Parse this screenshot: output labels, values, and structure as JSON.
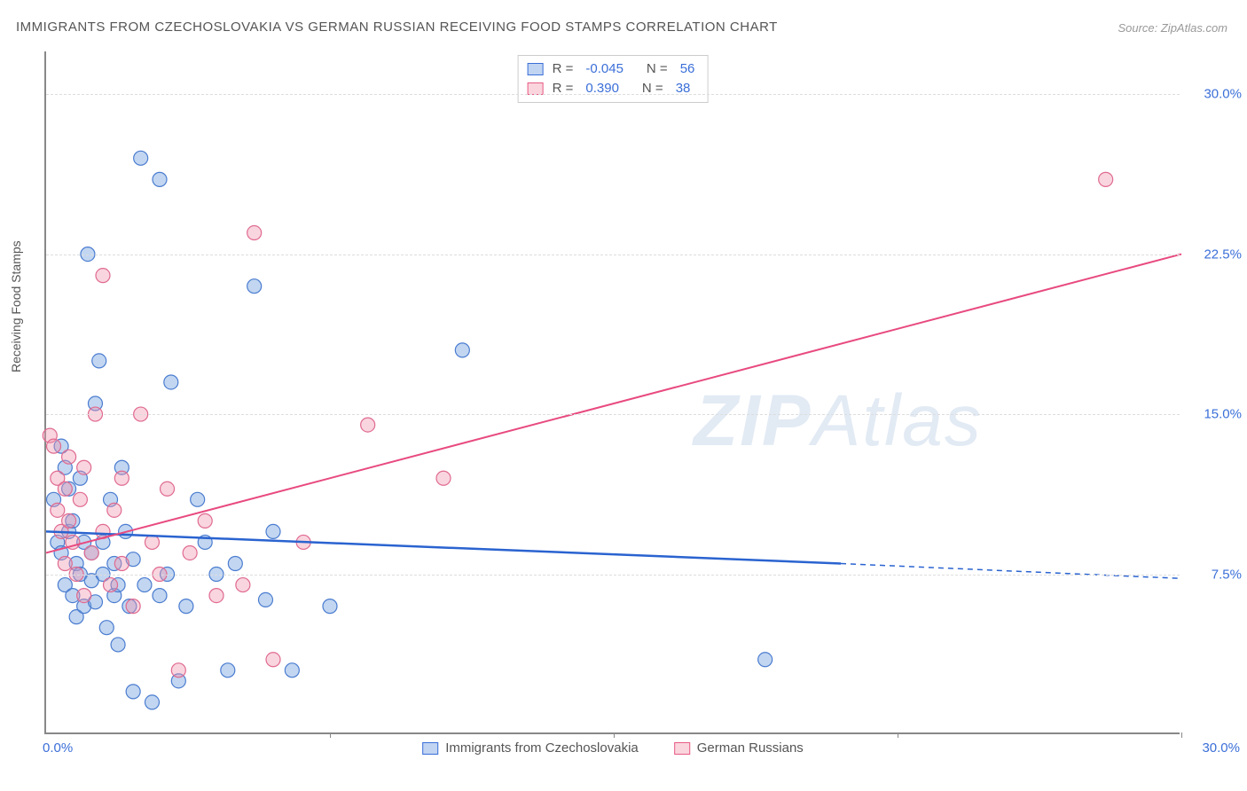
{
  "title": "IMMIGRANTS FROM CZECHOSLOVAKIA VS GERMAN RUSSIAN RECEIVING FOOD STAMPS CORRELATION CHART",
  "source": "Source: ZipAtlas.com",
  "ylabel": "Receiving Food Stamps",
  "watermark_a": "ZIP",
  "watermark_b": "Atlas",
  "chart": {
    "type": "scatter",
    "xlim": [
      0,
      30
    ],
    "ylim": [
      0,
      32
    ],
    "yticks": [
      7.5,
      15.0,
      22.5,
      30.0
    ],
    "ytick_labels": [
      "7.5%",
      "15.0%",
      "22.5%",
      "30.0%"
    ],
    "x_left_label": "0.0%",
    "x_right_label": "30.0%",
    "xtick_marks": [
      7.5,
      15,
      22.5,
      30
    ],
    "grid_color": "#dddddd",
    "axis_color": "#888888",
    "background": "#ffffff",
    "marker_radius": 8,
    "series": [
      {
        "name": "Immigrants from Czechoslovakia",
        "key": "blue",
        "fill": "rgba(120,165,225,0.45)",
        "stroke": "#4a7cd0",
        "r_value": "-0.045",
        "n_value": "56",
        "trend": {
          "x0": 0,
          "y0": 9.5,
          "x1_solid": 21,
          "y1_solid": 8.0,
          "x1_dash": 30,
          "y1_dash": 7.3,
          "color": "#2a63d0"
        },
        "points": [
          [
            0.2,
            11.0
          ],
          [
            0.3,
            9.0
          ],
          [
            0.4,
            13.5
          ],
          [
            0.4,
            8.5
          ],
          [
            0.5,
            12.5
          ],
          [
            0.5,
            7.0
          ],
          [
            0.6,
            11.5
          ],
          [
            0.6,
            9.5
          ],
          [
            0.7,
            6.5
          ],
          [
            0.7,
            10.0
          ],
          [
            0.8,
            8.0
          ],
          [
            0.8,
            5.5
          ],
          [
            0.9,
            12.0
          ],
          [
            0.9,
            7.5
          ],
          [
            1.0,
            6.0
          ],
          [
            1.0,
            9.0
          ],
          [
            1.1,
            22.5
          ],
          [
            1.2,
            8.5
          ],
          [
            1.2,
            7.2
          ],
          [
            1.3,
            6.2
          ],
          [
            1.3,
            15.5
          ],
          [
            1.4,
            17.5
          ],
          [
            1.5,
            9.0
          ],
          [
            1.5,
            7.5
          ],
          [
            1.6,
            5.0
          ],
          [
            1.7,
            11.0
          ],
          [
            1.8,
            8.0
          ],
          [
            1.8,
            6.5
          ],
          [
            1.9,
            7.0
          ],
          [
            1.9,
            4.2
          ],
          [
            2.0,
            12.5
          ],
          [
            2.1,
            9.5
          ],
          [
            2.2,
            6.0
          ],
          [
            2.3,
            2.0
          ],
          [
            2.3,
            8.2
          ],
          [
            2.5,
            27.0
          ],
          [
            2.6,
            7.0
          ],
          [
            2.8,
            1.5
          ],
          [
            3.0,
            26.0
          ],
          [
            3.0,
            6.5
          ],
          [
            3.2,
            7.5
          ],
          [
            3.3,
            16.5
          ],
          [
            3.5,
            2.5
          ],
          [
            3.7,
            6.0
          ],
          [
            4.0,
            11.0
          ],
          [
            4.2,
            9.0
          ],
          [
            4.5,
            7.5
          ],
          [
            4.8,
            3.0
          ],
          [
            5.0,
            8.0
          ],
          [
            5.5,
            21.0
          ],
          [
            5.8,
            6.3
          ],
          [
            6.0,
            9.5
          ],
          [
            6.5,
            3.0
          ],
          [
            7.5,
            6.0
          ],
          [
            11.0,
            18.0
          ],
          [
            19.0,
            3.5
          ]
        ]
      },
      {
        "name": "German Russians",
        "key": "pink",
        "fill": "rgba(240,150,175,0.4)",
        "stroke": "#e06a90",
        "r_value": "0.390",
        "n_value": "38",
        "trend": {
          "x0": 0,
          "y0": 8.5,
          "x1_solid": 30,
          "y1_solid": 22.5,
          "color": "#e84a80"
        },
        "points": [
          [
            0.1,
            14.0
          ],
          [
            0.2,
            13.5
          ],
          [
            0.3,
            12.0
          ],
          [
            0.3,
            10.5
          ],
          [
            0.4,
            9.5
          ],
          [
            0.5,
            11.5
          ],
          [
            0.5,
            8.0
          ],
          [
            0.6,
            10.0
          ],
          [
            0.6,
            13.0
          ],
          [
            0.7,
            9.0
          ],
          [
            0.8,
            7.5
          ],
          [
            0.9,
            11.0
          ],
          [
            1.0,
            6.5
          ],
          [
            1.0,
            12.5
          ],
          [
            1.2,
            8.5
          ],
          [
            1.3,
            15.0
          ],
          [
            1.5,
            9.5
          ],
          [
            1.5,
            21.5
          ],
          [
            1.7,
            7.0
          ],
          [
            1.8,
            10.5
          ],
          [
            2.0,
            8.0
          ],
          [
            2.0,
            12.0
          ],
          [
            2.3,
            6.0
          ],
          [
            2.5,
            15.0
          ],
          [
            2.8,
            9.0
          ],
          [
            3.0,
            7.5
          ],
          [
            3.2,
            11.5
          ],
          [
            3.5,
            3.0
          ],
          [
            3.8,
            8.5
          ],
          [
            4.2,
            10.0
          ],
          [
            4.5,
            6.5
          ],
          [
            5.2,
            7.0
          ],
          [
            5.5,
            23.5
          ],
          [
            6.0,
            3.5
          ],
          [
            6.8,
            9.0
          ],
          [
            8.5,
            14.5
          ],
          [
            10.5,
            12.0
          ],
          [
            28.0,
            26.0
          ]
        ]
      }
    ],
    "legend_top": {
      "r_label": "R =",
      "n_label": "N ="
    },
    "legend_bottom": [
      {
        "swatch": "blue",
        "label": "Immigrants from Czechoslovakia"
      },
      {
        "swatch": "pink",
        "label": "German Russians"
      }
    ]
  }
}
